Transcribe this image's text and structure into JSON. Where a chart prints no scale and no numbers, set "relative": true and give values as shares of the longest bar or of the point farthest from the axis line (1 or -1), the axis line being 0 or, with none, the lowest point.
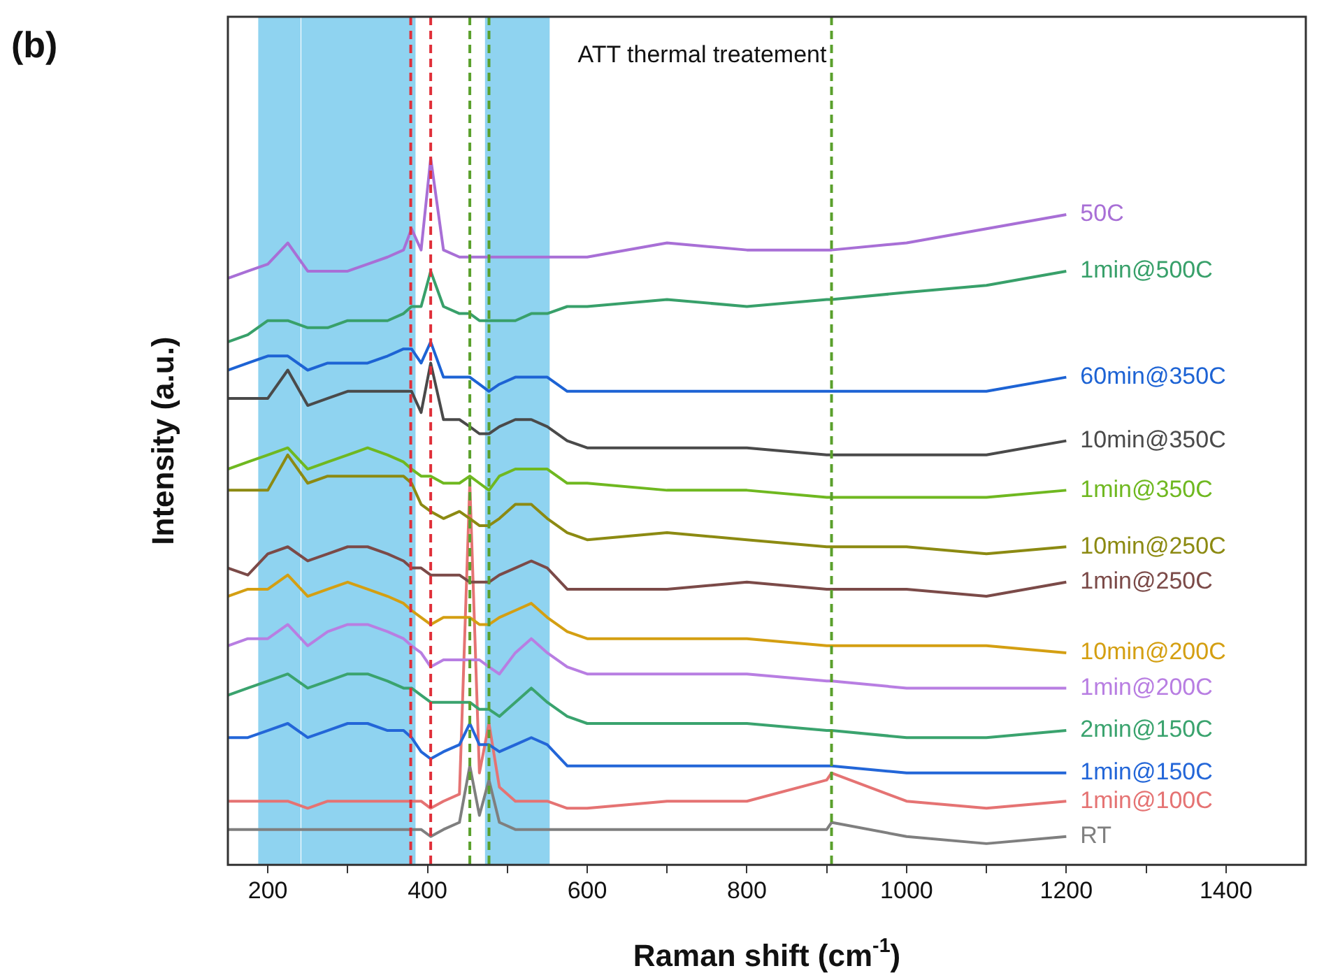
{
  "chart_data": {
    "type": "line",
    "title": "ATT thermal treatement",
    "xlabel": "Raman shift (cm$^{-1}$)",
    "ylabel": "Intensity (a.u.)",
    "annotations": [
      "(b)"
    ],
    "relative": true,
    "tick_labels": "x",
    "xlim": [
      150,
      1500
    ],
    "xticks": [
      200,
      {
        "value": 300,
        "label": null
      },
      400,
      {
        "value": 500,
        "label": null
      },
      600,
      {
        "value": 700,
        "label": null
      },
      800,
      {
        "value": 900,
        "label": null
      },
      1000,
      {
        "value": 1100,
        "label": null
      },
      1200,
      {
        "value": 1300,
        "label": null
      },
      1400
    ],
    "x": [
      150,
      175,
      200,
      225,
      250,
      275,
      300,
      325,
      350,
      370,
      380,
      392,
      404,
      420,
      440,
      453,
      465,
      477,
      490,
      510,
      530,
      550,
      575,
      600,
      700,
      800,
      900,
      906,
      1000,
      1100,
      1200
    ],
    "series": [
      {
        "name": "50C",
        "color": "#a86fd6",
        "values": [
          0.83,
          0.84,
          0.85,
          0.88,
          0.84,
          0.84,
          0.84,
          0.85,
          0.86,
          0.87,
          0.9,
          0.87,
          1.0,
          0.87,
          0.86,
          0.86,
          0.86,
          0.86,
          0.86,
          0.86,
          0.86,
          0.86,
          0.86,
          0.86,
          0.88,
          0.87,
          0.87,
          0.87,
          0.88,
          0.9,
          0.92
        ]
      },
      {
        "name": "1min@500C",
        "color": "#38a06a",
        "values": [
          0.74,
          0.75,
          0.77,
          0.77,
          0.76,
          0.76,
          0.77,
          0.77,
          0.77,
          0.78,
          0.79,
          0.79,
          0.84,
          0.79,
          0.78,
          0.78,
          0.77,
          0.77,
          0.77,
          0.77,
          0.78,
          0.78,
          0.79,
          0.79,
          0.8,
          0.79,
          0.8,
          0.8,
          0.81,
          0.82,
          0.84
        ]
      },
      {
        "name": "60min@350C",
        "color": "#1d63d4",
        "values": [
          0.7,
          0.71,
          0.72,
          0.72,
          0.7,
          0.71,
          0.71,
          0.71,
          0.72,
          0.73,
          0.73,
          0.71,
          0.74,
          0.69,
          0.69,
          0.69,
          0.68,
          0.67,
          0.68,
          0.69,
          0.69,
          0.69,
          0.67,
          0.67,
          0.67,
          0.67,
          0.67,
          0.67,
          0.67,
          0.67,
          0.69
        ]
      },
      {
        "name": "10min@350C",
        "color": "#4a4a4a",
        "values": [
          0.66,
          0.66,
          0.66,
          0.7,
          0.65,
          0.66,
          0.67,
          0.67,
          0.67,
          0.67,
          0.67,
          0.64,
          0.71,
          0.63,
          0.63,
          0.62,
          0.61,
          0.61,
          0.62,
          0.63,
          0.63,
          0.62,
          0.6,
          0.59,
          0.59,
          0.59,
          0.58,
          0.58,
          0.58,
          0.58,
          0.6
        ]
      },
      {
        "name": "1min@350C",
        "color": "#6fb820",
        "values": [
          0.56,
          0.57,
          0.58,
          0.59,
          0.56,
          0.57,
          0.58,
          0.59,
          0.58,
          0.57,
          0.56,
          0.55,
          0.55,
          0.54,
          0.54,
          0.55,
          0.54,
          0.53,
          0.55,
          0.56,
          0.56,
          0.56,
          0.54,
          0.54,
          0.53,
          0.53,
          0.52,
          0.52,
          0.52,
          0.52,
          0.53
        ]
      },
      {
        "name": "10min@250C",
        "color": "#8c8a12",
        "values": [
          0.53,
          0.53,
          0.53,
          0.58,
          0.54,
          0.55,
          0.55,
          0.55,
          0.55,
          0.55,
          0.54,
          0.51,
          0.5,
          0.49,
          0.5,
          0.49,
          0.48,
          0.48,
          0.49,
          0.51,
          0.51,
          0.49,
          0.47,
          0.46,
          0.47,
          0.46,
          0.45,
          0.45,
          0.45,
          0.44,
          0.45
        ]
      },
      {
        "name": "1min@250C",
        "color": "#7b4a48",
        "values": [
          0.42,
          0.41,
          0.44,
          0.45,
          0.43,
          0.44,
          0.45,
          0.45,
          0.44,
          0.43,
          0.42,
          0.42,
          0.41,
          0.41,
          0.41,
          0.4,
          0.4,
          0.4,
          0.41,
          0.42,
          0.43,
          0.42,
          0.39,
          0.39,
          0.39,
          0.4,
          0.39,
          0.39,
          0.39,
          0.38,
          0.4
        ]
      },
      {
        "name": "10min@200C",
        "color": "#d49f12",
        "values": [
          0.38,
          0.39,
          0.39,
          0.41,
          0.38,
          0.39,
          0.4,
          0.39,
          0.38,
          0.37,
          0.36,
          0.35,
          0.34,
          0.35,
          0.35,
          0.35,
          0.34,
          0.34,
          0.35,
          0.36,
          0.37,
          0.35,
          0.33,
          0.32,
          0.32,
          0.32,
          0.31,
          0.31,
          0.31,
          0.31,
          0.3
        ]
      },
      {
        "name": "1min@200C",
        "color": "#b87ee2",
        "values": [
          0.31,
          0.32,
          0.32,
          0.34,
          0.31,
          0.33,
          0.34,
          0.34,
          0.33,
          0.32,
          0.31,
          0.3,
          0.28,
          0.29,
          0.29,
          0.29,
          0.29,
          0.28,
          0.27,
          0.3,
          0.32,
          0.3,
          0.28,
          0.27,
          0.27,
          0.27,
          0.26,
          0.26,
          0.25,
          0.25,
          0.25
        ]
      },
      {
        "name": "2min@150C",
        "color": "#3aa36e",
        "values": [
          0.24,
          0.25,
          0.26,
          0.27,
          0.25,
          0.26,
          0.27,
          0.27,
          0.26,
          0.25,
          0.25,
          0.24,
          0.23,
          0.23,
          0.23,
          0.23,
          0.22,
          0.22,
          0.21,
          0.23,
          0.25,
          0.23,
          0.21,
          0.2,
          0.2,
          0.2,
          0.19,
          0.19,
          0.18,
          0.18,
          0.19
        ]
      },
      {
        "name": "1min@150C",
        "color": "#2366d8",
        "values": [
          0.18,
          0.18,
          0.19,
          0.2,
          0.18,
          0.19,
          0.2,
          0.2,
          0.19,
          0.19,
          0.18,
          0.16,
          0.15,
          0.16,
          0.17,
          0.2,
          0.17,
          0.17,
          0.16,
          0.17,
          0.18,
          0.17,
          0.14,
          0.14,
          0.14,
          0.14,
          0.14,
          0.14,
          0.13,
          0.13,
          0.13
        ]
      },
      {
        "name": "1min@100C",
        "color": "#e57373",
        "values": [
          0.09,
          0.09,
          0.09,
          0.09,
          0.08,
          0.09,
          0.09,
          0.09,
          0.09,
          0.09,
          0.09,
          0.09,
          0.08,
          0.09,
          0.1,
          0.54,
          0.13,
          0.2,
          0.11,
          0.09,
          0.09,
          0.09,
          0.08,
          0.08,
          0.09,
          0.09,
          0.12,
          0.13,
          0.09,
          0.08,
          0.09
        ]
      },
      {
        "name": "RT",
        "color": "#7f7f7f",
        "values": [
          0.05,
          0.05,
          0.05,
          0.05,
          0.05,
          0.05,
          0.05,
          0.05,
          0.05,
          0.05,
          0.05,
          0.05,
          0.04,
          0.05,
          0.06,
          0.14,
          0.07,
          0.12,
          0.06,
          0.05,
          0.05,
          0.05,
          0.05,
          0.05,
          0.05,
          0.05,
          0.05,
          0.06,
          0.04,
          0.03,
          0.04
        ]
      }
    ],
    "ref_lines": [
      {
        "axis": "x",
        "value": 379,
        "color": "#e0303a",
        "line_style": "dashed"
      },
      {
        "axis": "x",
        "value": 404,
        "color": "#e0303a",
        "line_style": "dashed"
      },
      {
        "axis": "x",
        "value": 453,
        "color": "#5aa02c",
        "line_style": "dashed"
      },
      {
        "axis": "x",
        "value": 477,
        "color": "#5aa02c",
        "line_style": "dashed"
      },
      {
        "axis": "x",
        "value": 906,
        "color": "#5aa02c",
        "line_style": "dashed"
      }
    ],
    "bands": [
      {
        "axis": "x",
        "from": 188,
        "to": 241,
        "color": "#8fd3f0"
      },
      {
        "axis": "x",
        "from": 242,
        "to": 385,
        "color": "#8fd3f0"
      },
      {
        "axis": "x",
        "from": 472,
        "to": 553,
        "color": "#8fd3f0"
      }
    ]
  }
}
